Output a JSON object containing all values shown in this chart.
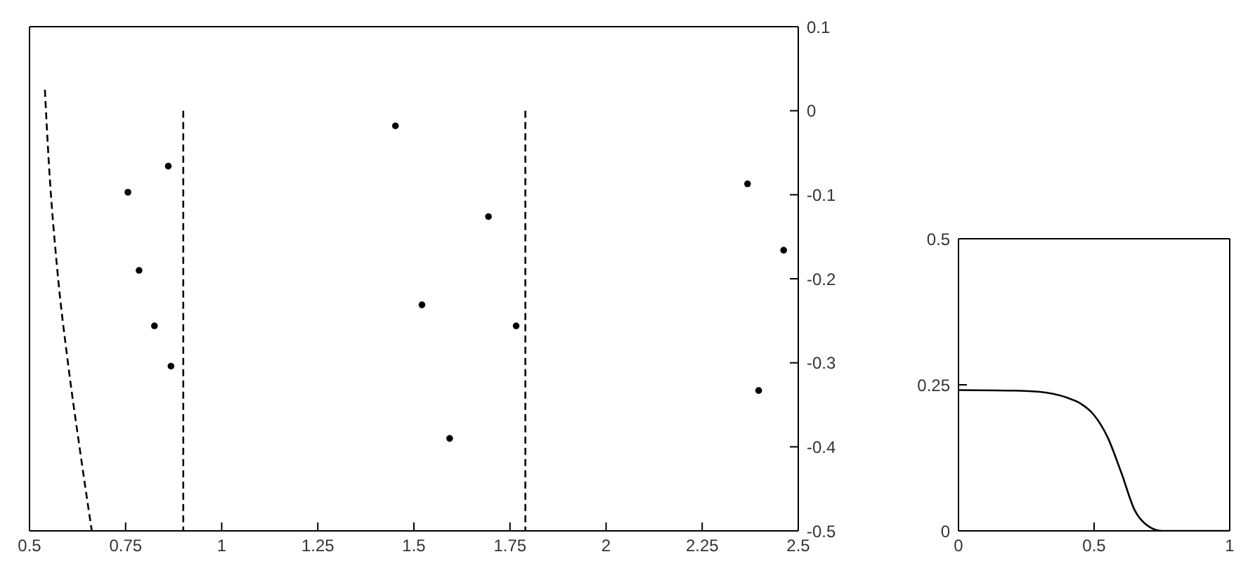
{
  "chart_data": [
    {
      "type": "scatter",
      "xlim": [
        0.5,
        2.5
      ],
      "xticks": [
        0.5,
        0.75,
        1,
        1.25,
        1.5,
        1.75,
        2,
        2.25,
        2.5
      ],
      "ylim": [
        -0.5,
        0.1
      ],
      "yticks": [
        -0.5,
        -0.4,
        -0.3,
        -0.2,
        -0.1,
        0,
        0.1
      ],
      "series": [
        {
          "type": "line",
          "marker": "none",
          "line_style": "dashed",
          "color": "#000000",
          "x": [
            0.54,
            0.55,
            0.572,
            0.6,
            0.63,
            0.662
          ],
          "values": [
            0.025,
            -0.06,
            -0.188,
            -0.3,
            -0.4,
            -0.5
          ]
        },
        {
          "type": "line",
          "marker": "none",
          "line_style": "dashed",
          "color": "#000000",
          "x": [
            0.9,
            0.9
          ],
          "values": [
            0,
            -0.5
          ]
        },
        {
          "type": "line",
          "marker": "none",
          "line_style": "dashed",
          "color": "#000000",
          "x": [
            1.79,
            1.79
          ],
          "values": [
            0,
            -0.5
          ]
        },
        {
          "marker": "circle",
          "color": "#000000",
          "x": [
            0.756,
            0.785,
            0.825,
            0.868,
            0.861,
            1.452,
            1.694,
            1.521,
            1.766,
            1.593,
            2.368,
            2.462,
            2.397
          ],
          "values": [
            -0.097,
            -0.19,
            -0.256,
            -0.304,
            -0.066,
            -0.018,
            -0.126,
            -0.231,
            -0.256,
            -0.39,
            -0.087,
            -0.166,
            -0.333
          ]
        }
      ]
    },
    {
      "type": "line",
      "color": "#000000",
      "x": [
        0,
        0.2,
        0.3,
        0.4,
        0.45,
        0.5,
        0.55,
        0.6,
        0.65,
        0.7,
        0.75,
        1
      ],
      "values": [
        0.241,
        0.24,
        0.238,
        0.228,
        0.218,
        0.198,
        0.16,
        0.1,
        0.035,
        0.008,
        0,
        0
      ],
      "xlim": [
        0,
        1
      ],
      "xticks": [
        0,
        0.5,
        1
      ],
      "ylim": [
        0,
        0.5
      ],
      "yticks": [
        0,
        0.25,
        0.5
      ]
    }
  ]
}
